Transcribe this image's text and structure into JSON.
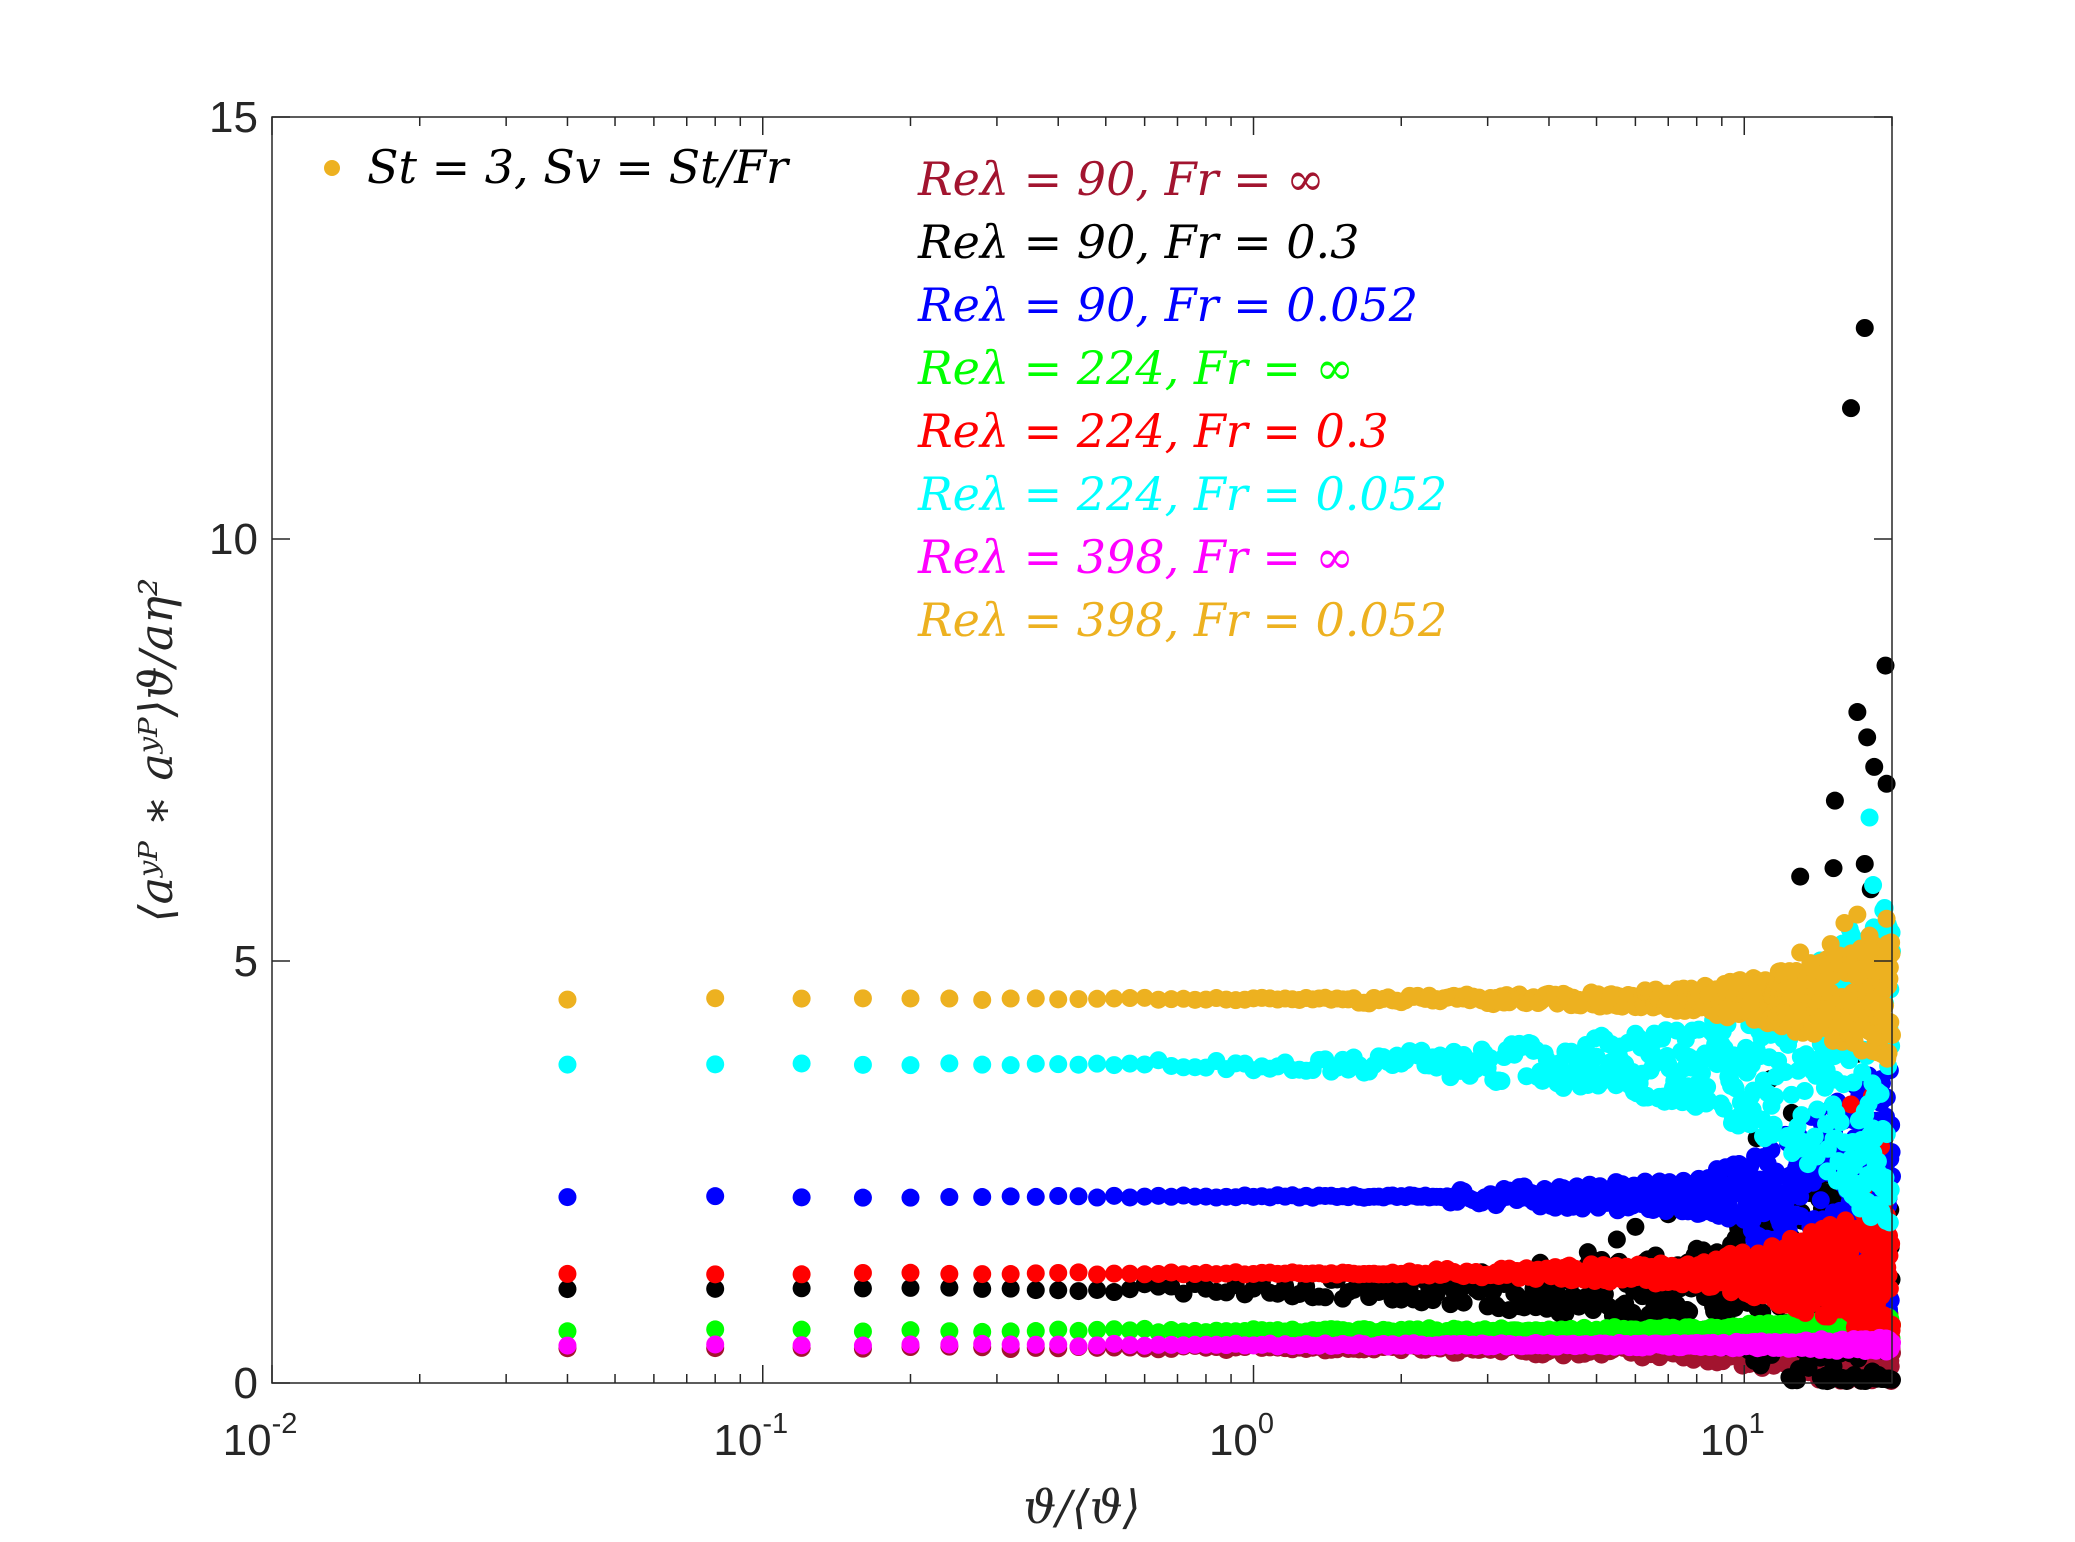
{
  "chart_data": {
    "type": "scatter",
    "title": "",
    "xlabel": "ϑ/⟨ϑ⟩",
    "ylabel": "⟨aʸᴾ ∗ aʸᴾ⟩ϑ/aη²",
    "xscale": "log",
    "xlim": [
      0.01,
      20
    ],
    "ylim": [
      0,
      15
    ],
    "x_ticks": [
      {
        "value": 0.01,
        "base": "10",
        "exp": "-2"
      },
      {
        "value": 0.1,
        "base": "10",
        "exp": "-1"
      },
      {
        "value": 1,
        "base": "10",
        "exp": "0"
      },
      {
        "value": 10,
        "base": "10",
        "exp": "1"
      }
    ],
    "y_ticks": [
      {
        "value": 0,
        "label": "0"
      },
      {
        "value": 5,
        "label": "5"
      },
      {
        "value": 10,
        "label": "10"
      },
      {
        "value": 15,
        "label": "15"
      }
    ],
    "grid": false,
    "legend_main": {
      "label": "St = 3, Sv = St/Fr",
      "color": "#EDB120",
      "placement": "top-left"
    },
    "annotation_placement": "top-center",
    "series": [
      {
        "name": "Reλ = 90, Fr = ∞",
        "color": "#A2142F",
        "base": 0.42,
        "onset": 0.25,
        "growth": 0.006,
        "extra": 0.3,
        "seed": 11,
        "points": [
          [
            14.5,
            0.9
          ],
          [
            16,
            1.3
          ],
          [
            17.5,
            1.7
          ],
          [
            18.5,
            2.0
          ],
          [
            19.2,
            2.2
          ],
          [
            18.8,
            2.6
          ]
        ]
      },
      {
        "name": "Reλ = 90, Fr = 0.3",
        "color": "#000000",
        "base": 1.12,
        "onset": 0.25,
        "growth": 0.025,
        "extra": 0.8,
        "seed": 23,
        "points": [
          [
            17.6,
            12.5
          ],
          [
            16.5,
            11.55
          ],
          [
            19.4,
            8.5
          ],
          [
            17.0,
            7.95
          ],
          [
            17.8,
            7.65
          ],
          [
            18.4,
            7.3
          ],
          [
            19.5,
            7.1
          ],
          [
            15.3,
            6.9
          ],
          [
            17.6,
            6.15
          ],
          [
            18.1,
            5.85
          ],
          [
            13.0,
            6.0
          ],
          [
            15.2,
            6.1
          ],
          [
            16.5,
            4.6
          ],
          [
            18.5,
            4.8
          ],
          [
            17.0,
            3.9
          ],
          [
            11.3,
            3.6
          ],
          [
            12.5,
            3.2
          ],
          [
            10.6,
            2.9
          ],
          [
            9.0,
            2.5
          ],
          [
            8.0,
            2.3
          ],
          [
            7.0,
            2.0
          ],
          [
            6.0,
            1.85
          ],
          [
            5.5,
            1.7
          ],
          [
            4.8,
            1.55
          ]
        ]
      },
      {
        "name": "Reλ = 90, Fr = 0.052",
        "color": "#0000FF",
        "base": 2.21,
        "onset": 2.5,
        "growth": 0.08,
        "extra": 1.2,
        "seed": 37,
        "points": [
          [
            19.4,
            4.9
          ],
          [
            18.7,
            4.5
          ],
          [
            19.0,
            3.6
          ],
          [
            17.2,
            3.4
          ],
          [
            19.5,
            3.0
          ]
        ]
      },
      {
        "name": "Reλ = 224, Fr = ∞",
        "color": "#00FF00",
        "base": 0.62,
        "onset": 0.5,
        "growth": 0.003,
        "extra": 0.1,
        "seed": 41,
        "points": [
          [
            19.4,
            1.3
          ],
          [
            19.0,
            0.7
          ]
        ]
      },
      {
        "name": "Reλ = 224, Fr = 0.3",
        "color": "#FF0000",
        "base": 1.3,
        "onset": 2.0,
        "growth": 0.04,
        "extra": 0.6,
        "seed": 53,
        "points": [
          [
            13.5,
            2.8
          ],
          [
            16.5,
            3.3
          ],
          [
            18.2,
            3.4
          ],
          [
            19.0,
            2.8
          ],
          [
            17.5,
            2.3
          ]
        ]
      },
      {
        "name": "Reλ = 224, Fr = 0.052",
        "color": "#00FFFF",
        "base": 3.78,
        "onset": 0.6,
        "growth": 0.05,
        "extra": 0.9,
        "seed": 67,
        "points": [
          [
            18.0,
            6.7
          ],
          [
            18.3,
            5.9
          ],
          [
            19.2,
            5.6
          ],
          [
            19.5,
            5.0
          ],
          [
            17.5,
            4.9
          ]
        ]
      },
      {
        "name": "Reλ = 398, Fr = ∞",
        "color": "#FF00FF",
        "base": 0.45,
        "onset": 1.0,
        "growth": 0.002,
        "extra": 0.05,
        "seed": 71,
        "points": []
      },
      {
        "name": "Reλ = 398, Fr = 0.052",
        "color": "#EDB120",
        "base": 4.55,
        "onset": 1.5,
        "growth": 0.03,
        "extra": 0.45,
        "seed": 83,
        "points": [
          [
            16.0,
            5.45
          ],
          [
            17.0,
            5.55
          ],
          [
            19.5,
            5.5
          ],
          [
            18.0,
            5.3
          ],
          [
            15.0,
            5.2
          ],
          [
            13.0,
            5.1
          ]
        ]
      }
    ]
  }
}
